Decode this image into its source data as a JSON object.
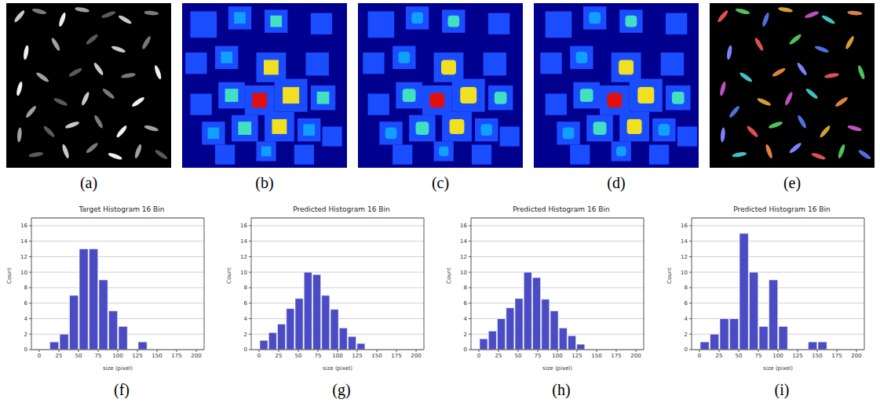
{
  "figure": {
    "images": [
      {
        "panel": "(a)"
      },
      {
        "panel": "(b)"
      },
      {
        "panel": "(c)"
      },
      {
        "panel": "(d)"
      },
      {
        "panel": "(e)"
      }
    ]
  },
  "chart_data": [
    {
      "type": "histogram",
      "panel": "(f)",
      "title": "Target Histogram 16 Bin",
      "x_label": "size (pixel)",
      "y_label": "Count",
      "bins": [
        0,
        12.5,
        25,
        37.5,
        50,
        62.5,
        75,
        87.5,
        100,
        112.5,
        125,
        137.5,
        150,
        162.5,
        175,
        187.5,
        200
      ],
      "values": [
        0,
        1,
        2,
        7,
        13,
        13,
        9,
        5,
        3,
        0,
        1,
        0,
        0,
        0,
        0,
        0
      ],
      "color": "#4b4bc4",
      "xlim": [
        -10,
        210
      ],
      "xticks": [
        0,
        25,
        50,
        75,
        100,
        125,
        150,
        175,
        200
      ],
      "ylim": [
        0,
        17
      ],
      "yticks": [
        0,
        2,
        4,
        6,
        8,
        10,
        12,
        14,
        16
      ],
      "grid": true
    },
    {
      "type": "histogram",
      "panel": "(g)",
      "title": "Predicted Histogram 16 Bin",
      "x_label": "size (pixel)",
      "y_label": "Count",
      "bins": [
        0,
        11.25,
        22.5,
        33.75,
        45,
        56.25,
        67.5,
        78.75,
        90,
        101.25,
        112.5,
        123.75,
        135
      ],
      "values": [
        1.2,
        2.2,
        3.3,
        5.3,
        6.6,
        10,
        9.7,
        7,
        5.2,
        2.8,
        1.7,
        0.8
      ],
      "color": "#4b4bc4",
      "xlim": [
        -10,
        210
      ],
      "xticks": [
        0,
        25,
        50,
        75,
        100,
        125,
        150,
        175,
        200
      ],
      "ylim": [
        0,
        17
      ],
      "yticks": [
        0,
        2,
        4,
        6,
        8,
        10,
        12,
        14,
        16
      ],
      "grid": true
    },
    {
      "type": "histogram",
      "panel": "(h)",
      "title": "Predicted Histogram 16 Bin",
      "x_label": "size (pixel)",
      "y_label": "Count",
      "bins": [
        0,
        11.25,
        22.5,
        33.75,
        45,
        56.25,
        67.5,
        78.75,
        90,
        101.25,
        112.5,
        123.75,
        135
      ],
      "values": [
        1.4,
        2.4,
        4,
        5.4,
        6.6,
        10,
        9.3,
        6.5,
        5,
        2.8,
        1.8,
        0.7
      ],
      "color": "#4b4bc4",
      "xlim": [
        -10,
        210
      ],
      "xticks": [
        0,
        25,
        50,
        75,
        100,
        125,
        150,
        175,
        200
      ],
      "ylim": [
        0,
        17
      ],
      "yticks": [
        0,
        2,
        4,
        6,
        8,
        10,
        12,
        14,
        16
      ],
      "grid": true
    },
    {
      "type": "histogram",
      "panel": "(i)",
      "title": "Predicted Histogram 16 Bin",
      "x_label": "size (pixel)",
      "y_label": "Count",
      "bins": [
        0,
        12.5,
        25,
        37.5,
        50,
        62.5,
        75,
        87.5,
        100,
        112.5,
        125,
        137.5,
        150,
        162.5,
        175,
        187.5,
        200
      ],
      "values": [
        1,
        2,
        4,
        4,
        15,
        10,
        3,
        9,
        3,
        0,
        0,
        1,
        1,
        0,
        0,
        0
      ],
      "color": "#4b4bc4",
      "xlim": [
        -10,
        210
      ],
      "xticks": [
        0,
        25,
        50,
        75,
        100,
        125,
        150,
        175,
        200
      ],
      "ylim": [
        0,
        17
      ],
      "yticks": [
        0,
        2,
        4,
        6,
        8,
        10,
        12,
        14,
        16
      ],
      "grid": true
    }
  ]
}
